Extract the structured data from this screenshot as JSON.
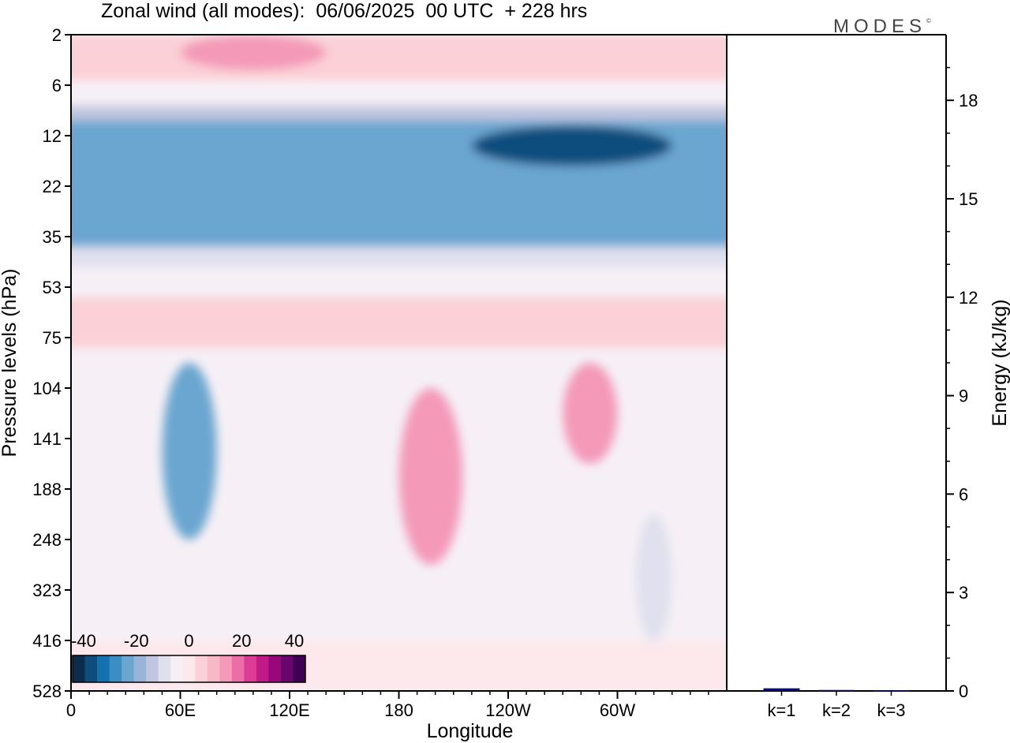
{
  "title": "Zonal wind (all modes):  06/06/2025  00 UTC  + 228 hrs",
  "logo": "MODES",
  "logo_mark": "©",
  "chart_data": [
    {
      "type": "heatmap",
      "variable": "Zonal wind (all modes)",
      "xlabel": "Longitude",
      "ylabel": "Pressure levels (hPa)",
      "x_ticks": [
        "0",
        "60E",
        "120E",
        "180",
        "120W",
        "60W"
      ],
      "x_tick_degrees": [
        0,
        60,
        120,
        180,
        240,
        300
      ],
      "xlim": [
        0,
        360
      ],
      "y_ticks": [
        "2",
        "6",
        "12",
        "22",
        "35",
        "53",
        "75",
        "104",
        "141",
        "188",
        "248",
        "323",
        "416",
        "528"
      ],
      "y_scale": "model levels, pressure increasing downward",
      "colorbar": {
        "ticks": [
          "-40",
          "-20",
          "0",
          "20",
          "40"
        ],
        "range": [
          -40,
          40
        ],
        "colors": [
          "#0b2c4a",
          "#0f4d7d",
          "#1272ad",
          "#3a8ec2",
          "#6aa6d0",
          "#98b4d8",
          "#c0c6e0",
          "#e0e0ee",
          "#f6f0f6",
          "#fde8ec",
          "#fbd0d6",
          "#f8b8c6",
          "#f49ab8",
          "#ec6ea6",
          "#dd3c96",
          "#c01a88",
          "#98087a",
          "#6a056e",
          "#3f0055"
        ]
      },
      "regions": [
        {
          "desc": "upper easterly band (strong negative)",
          "lon": [
            0,
            360
          ],
          "level_index": [
            1.7,
            4.2
          ],
          "value": -24
        },
        {
          "desc": "core easterly jet 60W–20W",
          "lon": [
            220,
            330
          ],
          "level_index": [
            1.8,
            2.6
          ],
          "value": -36
        },
        {
          "desc": "upper westerlies near 2 hPa",
          "lon": [
            60,
            140
          ],
          "level_index": [
            0,
            0.7
          ],
          "value": 12
        },
        {
          "desc": "negative anomaly near 65E",
          "lon": [
            50,
            80
          ],
          "level_index": [
            6.5,
            10
          ],
          "value": -24
        },
        {
          "desc": "positive anomaly near 170W",
          "lon": [
            180,
            215
          ],
          "level_index": [
            7,
            10.5
          ],
          "value": 14
        },
        {
          "desc": "positive anomaly near 80W",
          "lon": [
            270,
            300
          ],
          "level_index": [
            6.5,
            8.5
          ],
          "value": 14
        },
        {
          "desc": "weak negative near 40W",
          "lon": [
            310,
            330
          ],
          "level_index": [
            9.5,
            12
          ],
          "value": -8
        }
      ]
    },
    {
      "type": "bar",
      "ylabel": "Energy (kJ/kg)",
      "categories": [
        "k=1",
        "k=2",
        "k=3"
      ],
      "values": [
        0.08,
        0.03,
        0.02
      ],
      "ylim": [
        0,
        20
      ],
      "y_ticks": [
        "0",
        "3",
        "6",
        "9",
        "12",
        "15",
        "18"
      ],
      "bar_color": "#0a0a80"
    }
  ]
}
